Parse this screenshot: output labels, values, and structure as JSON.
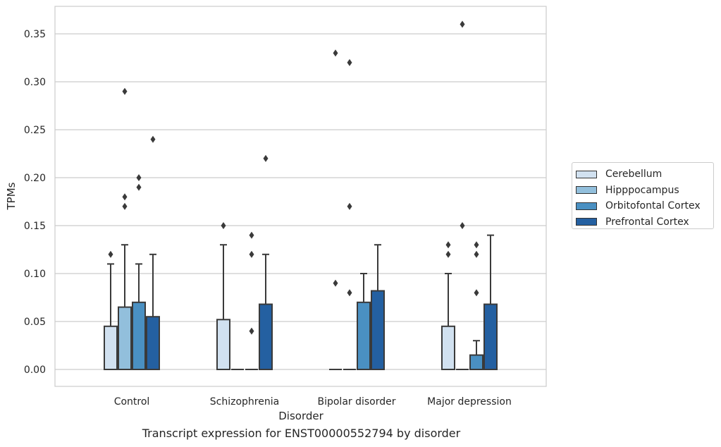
{
  "caption": "Transcript expression for ENST00000552794 by disorder",
  "legend": {
    "items": [
      {
        "label": "Cerebellum",
        "color": "#d1e1f0"
      },
      {
        "label": "Hipppocampus",
        "color": "#92bfdc"
      },
      {
        "label": "Orbitofontal Cortex",
        "color": "#4a90c2"
      },
      {
        "label": "Prefrontal Cortex",
        "color": "#2460a1"
      }
    ]
  },
  "chart_data": {
    "type": "box",
    "xlabel": "Disorder",
    "ylabel": "TPMs",
    "ylim": [
      -0.018,
      0.378
    ],
    "yticks": [
      "0.00",
      "0.05",
      "0.10",
      "0.15",
      "0.20",
      "0.25",
      "0.30",
      "0.35"
    ],
    "grid": "horizontal",
    "legend_position": "right",
    "categories": [
      "Control",
      "Schizophrenia",
      "Bipolar disorder",
      "Major depression"
    ],
    "series": [
      {
        "name": "Cerebellum",
        "boxes": [
          {
            "q1": 0,
            "q3": 0.045,
            "whisker_low": 0,
            "whisker_high": 0.11,
            "outliers": [
              0.12
            ]
          },
          {
            "q1": 0,
            "q3": 0.052,
            "whisker_low": 0,
            "whisker_high": 0.13,
            "outliers": [
              0.15
            ]
          },
          {
            "q1": 0,
            "q3": 0,
            "whisker_low": 0,
            "whisker_high": 0,
            "outliers": [
              0.09,
              0.33
            ]
          },
          {
            "q1": 0,
            "q3": 0.045,
            "whisker_low": 0,
            "whisker_high": 0.1,
            "outliers": [
              0.12,
              0.13
            ]
          }
        ]
      },
      {
        "name": "Hipppocampus",
        "boxes": [
          {
            "q1": 0,
            "q3": 0.065,
            "whisker_low": 0,
            "whisker_high": 0.13,
            "outliers": [
              0.17,
              0.18,
              0.29
            ]
          },
          {
            "q1": 0,
            "q3": 0,
            "whisker_low": 0,
            "whisker_high": 0,
            "outliers": []
          },
          {
            "q1": 0,
            "q3": 0,
            "whisker_low": 0,
            "whisker_high": 0,
            "outliers": [
              0.08,
              0.17,
              0.32
            ]
          },
          {
            "q1": 0,
            "q3": 0,
            "whisker_low": 0,
            "whisker_high": 0,
            "outliers": [
              0.15,
              0.36
            ]
          }
        ]
      },
      {
        "name": "Orbitofontal Cortex",
        "boxes": [
          {
            "q1": 0,
            "q3": 0.07,
            "whisker_low": 0,
            "whisker_high": 0.11,
            "outliers": [
              0.19,
              0.2
            ]
          },
          {
            "q1": 0,
            "q3": 0,
            "whisker_low": 0,
            "whisker_high": 0,
            "outliers": [
              0.04,
              0.12,
              0.14
            ]
          },
          {
            "q1": 0,
            "q3": 0.07,
            "whisker_low": 0,
            "whisker_high": 0.1,
            "outliers": []
          },
          {
            "q1": 0,
            "q3": 0.015,
            "whisker_low": 0,
            "whisker_high": 0.03,
            "outliers": [
              0.08,
              0.12,
              0.13
            ]
          }
        ]
      },
      {
        "name": "Prefrontal Cortex",
        "boxes": [
          {
            "q1": 0,
            "q3": 0.055,
            "whisker_low": 0,
            "whisker_high": 0.12,
            "outliers": [
              0.24
            ]
          },
          {
            "q1": 0,
            "q3": 0.068,
            "whisker_low": 0,
            "whisker_high": 0.12,
            "outliers": [
              0.22
            ]
          },
          {
            "q1": 0,
            "q3": 0.082,
            "whisker_low": 0,
            "whisker_high": 0.13,
            "outliers": []
          },
          {
            "q1": 0,
            "q3": 0.068,
            "whisker_low": 0,
            "whisker_high": 0.14,
            "outliers": []
          }
        ]
      }
    ]
  }
}
